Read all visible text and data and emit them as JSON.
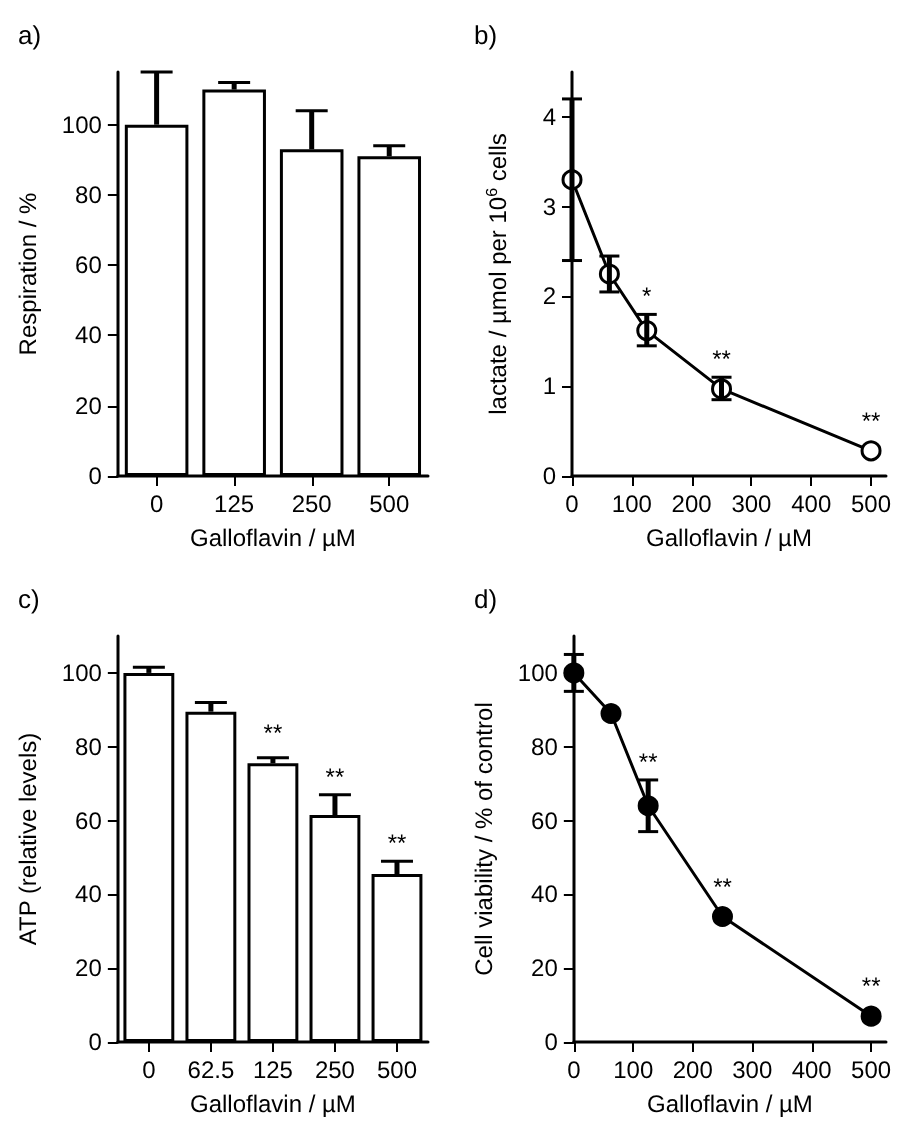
{
  "chart_data": [
    {
      "type": "bar",
      "title": "a)",
      "xlabel": "Galloflavin / µM",
      "ylabel": "Respiration / %",
      "categories": [
        "0",
        "125",
        "250",
        "500"
      ],
      "series": [
        {
          "color": "#ffffff",
          "values": [
            100,
            110,
            93,
            91
          ],
          "errors": [
            [
              100,
              115
            ],
            [
              110,
              112
            ],
            [
              93,
              104
            ],
            [
              91,
              94
            ]
          ]
        }
      ],
      "ylim": [
        0,
        115
      ],
      "yticks": [
        0,
        20,
        40,
        60,
        80,
        100
      ]
    },
    {
      "type": "line",
      "title": "b)",
      "xlabel": "Galloflavin / µM",
      "ylabel": "lactate / µmol per 10$^{6}$ cells",
      "x": [
        0,
        62.5,
        125,
        250,
        500
      ],
      "series": [
        {
          "color": "#000000",
          "colors": [
            "#ffffff",
            "#ffffff",
            "#ffffff",
            "#ffffff",
            "#ffffff"
          ],
          "values": [
            3.3,
            2.25,
            1.62,
            0.97,
            0.28
          ],
          "errors": [
            [
              2.4,
              4.2
            ],
            [
              2.05,
              2.45
            ],
            [
              1.45,
              1.8
            ],
            [
              0.85,
              1.1
            ],
            null
          ]
        }
      ],
      "xlim": [
        0,
        525
      ],
      "xticks": [
        0,
        100,
        200,
        300,
        400,
        500
      ],
      "ylim": [
        0,
        4.5
      ],
      "yticks": [
        0,
        1,
        2,
        3,
        4
      ],
      "marker": "circle",
      "line_style": "solid",
      "annotations": [
        {
          "text": "*",
          "x": 125,
          "y": 1.62
        },
        {
          "text": "**",
          "x": 250,
          "y": 0.97
        },
        {
          "text": "**",
          "x": 500,
          "y": 0.28
        }
      ]
    },
    {
      "type": "bar",
      "title": "c)",
      "xlabel": "Galloflavin / µM",
      "ylabel": "ATP (relative levels)",
      "categories": [
        "0",
        "62.5",
        "125",
        "250",
        "500"
      ],
      "series": [
        {
          "color": "#ffffff",
          "values": [
            100,
            89.5,
            75.5,
            61.5,
            45.5
          ],
          "errors": [
            [
              100,
              101.5
            ],
            [
              89.5,
              92
            ],
            [
              75.5,
              77
            ],
            [
              61.5,
              67
            ],
            [
              45.5,
              49
            ]
          ]
        }
      ],
      "ylim": [
        0,
        110
      ],
      "yticks": [
        0,
        20,
        40,
        60,
        80,
        100
      ],
      "annotations": [
        {
          "text": "**",
          "x": "125",
          "y": 75.5
        },
        {
          "text": "**",
          "x": "250",
          "y": 61.5
        },
        {
          "text": "**",
          "x": "500",
          "y": 45.5
        }
      ]
    },
    {
      "type": "line",
      "title": "d)",
      "xlabel": "Galloflavin / µM",
      "ylabel": "Cell viability / % of control",
      "x": [
        0,
        62.5,
        125,
        250,
        500
      ],
      "series": [
        {
          "color": "#000000",
          "colors": [
            "#000000",
            "#000000",
            "#000000",
            "#000000",
            "#000000"
          ],
          "values": [
            100,
            89,
            64,
            34,
            7
          ],
          "errors": [
            [
              95,
              105
            ],
            null,
            [
              57,
              71
            ],
            null,
            null
          ]
        }
      ],
      "xlim": [
        0,
        525
      ],
      "xticks": [
        0,
        100,
        200,
        300,
        400,
        500
      ],
      "ylim": [
        0,
        110
      ],
      "yticks": [
        0,
        20,
        40,
        60,
        80,
        100
      ],
      "marker": "circle",
      "line_style": "solid",
      "annotations": [
        {
          "text": "**",
          "x": 125,
          "y": 64
        },
        {
          "text": "**",
          "x": 250,
          "y": 34
        },
        {
          "text": "**",
          "x": 500,
          "y": 7
        }
      ]
    }
  ]
}
